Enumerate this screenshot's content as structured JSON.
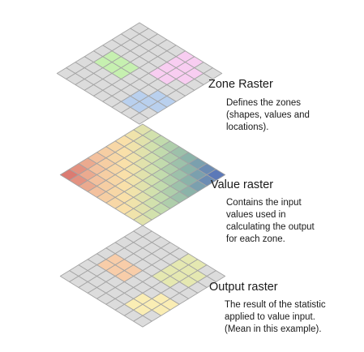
{
  "layers": [
    {
      "id": "zone",
      "title": "Zone Raster",
      "description": [
        "Defines the zones",
        "(shapes, values and",
        "locations)."
      ],
      "grid_rows": 9,
      "grid_cols": 9,
      "zones": [
        {
          "color": "#f8cdf1",
          "cells": [
            [
              0,
              5
            ],
            [
              0,
              6
            ],
            [
              1,
              5
            ],
            [
              1,
              6
            ],
            [
              1,
              7
            ],
            [
              2,
              5
            ],
            [
              2,
              6
            ],
            [
              2,
              7
            ],
            [
              3,
              5
            ],
            [
              3,
              6
            ]
          ]
        },
        {
          "color": "#c6f0b0",
          "cells": [
            [
              4,
              1
            ],
            [
              4,
              2
            ],
            [
              4,
              3
            ],
            [
              5,
              1
            ],
            [
              5,
              2
            ],
            [
              5,
              3
            ]
          ]
        },
        {
          "color": "#b9d0ee",
          "cells": [
            [
              5,
              7
            ],
            [
              5,
              8
            ],
            [
              6,
              6
            ],
            [
              6,
              7
            ],
            [
              6,
              8
            ],
            [
              7,
              6
            ],
            [
              7,
              7
            ]
          ]
        }
      ]
    },
    {
      "id": "value",
      "title": "Value raster",
      "description": [
        "Contains the input",
        "values used in",
        "calculating the output",
        "for each zone."
      ],
      "grid_rows": 9,
      "grid_cols": 9,
      "gradient_stops": [
        "#db7b72",
        "#f5c6a1",
        "#f9e4aa",
        "#c9e0ae",
        "#8eb7a8",
        "#5c79b8"
      ]
    },
    {
      "id": "output",
      "title": "Output raster",
      "description": [
        "The result of the statistic",
        "applied to value input.",
        "(Mean in this example)."
      ],
      "grid_rows": 9,
      "grid_cols": 9,
      "zones": [
        {
          "color": "#e5e8b1",
          "cells": [
            [
              0,
              5
            ],
            [
              0,
              6
            ],
            [
              1,
              5
            ],
            [
              1,
              6
            ],
            [
              1,
              7
            ],
            [
              2,
              5
            ],
            [
              2,
              6
            ],
            [
              2,
              7
            ],
            [
              3,
              5
            ],
            [
              3,
              6
            ]
          ]
        },
        {
          "color": "#f8cda9",
          "cells": [
            [
              4,
              1
            ],
            [
              4,
              2
            ],
            [
              4,
              3
            ],
            [
              5,
              1
            ],
            [
              5,
              2
            ],
            [
              5,
              3
            ]
          ]
        },
        {
          "color": "#faedb4",
          "cells": [
            [
              5,
              7
            ],
            [
              5,
              8
            ],
            [
              6,
              6
            ],
            [
              6,
              7
            ],
            [
              6,
              8
            ],
            [
              7,
              6
            ],
            [
              7,
              7
            ]
          ]
        }
      ]
    }
  ],
  "colors": {
    "cell": "#dcdcdc",
    "grid_line": "#a3a3a3"
  }
}
